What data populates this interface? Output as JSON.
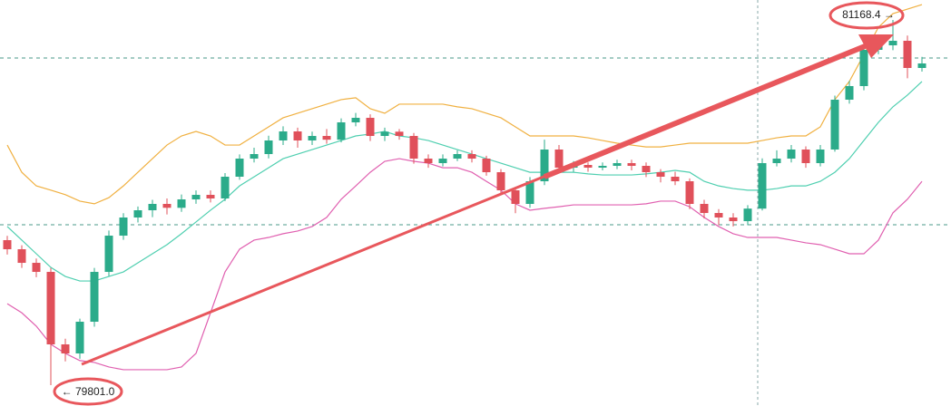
{
  "chart_data": {
    "type": "candlestick",
    "up_color": "#2bab8a",
    "down_color": "#e0505a",
    "ylim": [
      79723,
      81243
    ],
    "open": [
      80343.9,
      80309.9,
      80259.0,
      80225.1,
      79953.7,
      79919.7,
      80038.5,
      80225.1,
      80360.8,
      80428.7,
      80455.8,
      80479.6,
      80465.0,
      80496.5,
      80513.5,
      80500.0,
      80581.4,
      80649.2,
      80666.2,
      80717.1,
      80751.0,
      80717.1,
      80734.0,
      80720.0,
      80784.9,
      80801.9,
      80734.0,
      80750.0,
      80734.0,
      80649.2,
      80632.3,
      80649.2,
      80666.2,
      80649.2,
      80598.3,
      80530.5,
      80479.6,
      80564.4,
      80683.2,
      80615.3,
      80625.5,
      80615.3,
      80622.1,
      80632.3,
      80622.1,
      80598.3,
      80581.4,
      80564.4,
      80479.6,
      80445.6,
      80428.7,
      80415.0,
      80462.0,
      80632.3,
      80649.2,
      80683.2,
      80632.3,
      80683.2,
      80869.8,
      80920.7,
      81056.4,
      81073.3,
      81090.3,
      80988.5
    ],
    "high": [
      80360,
      80325,
      80275,
      80240,
      79975,
      80050,
      80240,
      80380,
      80445,
      80470,
      80495,
      80500,
      80515,
      80530,
      80530,
      80595,
      80665,
      80690,
      80735,
      80770,
      80765,
      80750,
      80760,
      80800,
      80820,
      80815,
      80765,
      80760,
      80745,
      80665,
      80665,
      80680,
      80680,
      80660,
      80610,
      80540,
      80580,
      80720,
      80700,
      80640,
      80635,
      80635,
      80645,
      80645,
      80635,
      80610,
      80600,
      80575,
      80495,
      80460,
      80445,
      80475,
      80650,
      80680,
      80700,
      80695,
      80700,
      80885,
      80940,
      81075,
      81110,
      81168.4,
      81110,
      81030
    ],
    "low": [
      80290,
      80240,
      80205,
      79801.0,
      79890,
      79900,
      80020,
      80210,
      80345,
      80410,
      80430,
      80440,
      80450,
      80480,
      80485,
      80490,
      80570,
      80635,
      80650,
      80700,
      80690,
      80700,
      80705,
      80710,
      80770,
      80715,
      80715,
      80720,
      80630,
      80615,
      80620,
      80640,
      80635,
      80585,
      80515,
      80445,
      80465,
      80550,
      80600,
      80600,
      80600,
      80605,
      80610,
      80605,
      80580,
      80560,
      80550,
      80460,
      80425,
      80400,
      80395,
      80400,
      80455,
      80620,
      80635,
      80615,
      80620,
      80675,
      80855,
      80905,
      81040,
      81055,
      80950,
      80975
    ],
    "close": [
      80309.9,
      80259.0,
      80225.1,
      79953.7,
      79919.7,
      80038.5,
      80225.1,
      80360.8,
      80428.7,
      80455.8,
      80479.6,
      80465.0,
      80496.5,
      80513.5,
      80500.0,
      80581.4,
      80649.2,
      80666.2,
      80717.1,
      80751.0,
      80717.1,
      80734.0,
      80720.0,
      80784.9,
      80801.9,
      80734.0,
      80750.0,
      80734.0,
      80649.2,
      80632.3,
      80649.2,
      80666.2,
      80649.2,
      80598.3,
      80530.5,
      80479.6,
      80564.4,
      80683.2,
      80615.3,
      80625.5,
      80615.3,
      80622.1,
      80632.3,
      80622.1,
      80598.3,
      80581.4,
      80564.4,
      80479.6,
      80445.6,
      80428.7,
      80415.0,
      80462.0,
      80632.3,
      80649.2,
      80683.2,
      80632.3,
      80683.2,
      80869.8,
      80920.7,
      81056.4,
      81073.3,
      81090.3,
      80988.5,
      81005.5
    ],
    "series": [
      {
        "color": "#f0b040",
        "values": [
          80700,
          80598,
          80547,
          80531,
          80514,
          80490,
          80480,
          80503,
          80547,
          80598,
          80649,
          80700,
          80734,
          80751,
          80734,
          80700,
          80700,
          80734,
          80768,
          80802,
          80819,
          80836,
          80853,
          80870,
          80877,
          80836,
          80819,
          80853,
          80853,
          80853,
          80853,
          80843,
          80836,
          80819,
          80802,
          80768,
          80734,
          80734,
          80734,
          80734,
          80727,
          80717,
          80707,
          80700,
          80693,
          80693,
          80700,
          80707,
          80707,
          80707,
          80707,
          80707,
          80717,
          80727,
          80734,
          80734,
          80768,
          80870,
          80938,
          81039,
          81141,
          81192,
          81209,
          81226
        ]
      },
      {
        "color": "#4fcfb0",
        "values": [
          80395,
          80344,
          80293,
          80242,
          80208,
          80191,
          80191,
          80208,
          80225,
          80259,
          80293,
          80327,
          80368,
          80412,
          80456,
          80497,
          80547,
          80581,
          80615,
          80649,
          80666,
          80683,
          80700,
          80717,
          80734,
          80741,
          80751,
          80734,
          80727,
          80717,
          80700,
          80683,
          80666,
          80649,
          80632,
          80615,
          80598,
          80598,
          80598,
          80598,
          80592,
          80588,
          80588,
          80588,
          80592,
          80598,
          80605,
          80598,
          80564,
          80547,
          80537,
          80531,
          80531,
          80537,
          80547,
          80547,
          80564,
          80598,
          80649,
          80717,
          80785,
          80843,
          80887,
          80938
        ]
      },
      {
        "color": "#e060b0",
        "values": [
          80106,
          80072,
          80022,
          79954,
          79920,
          79893,
          79886,
          79869,
          79859,
          79859,
          79859,
          79859,
          79869,
          79920,
          80072,
          80225,
          80310,
          80344,
          80354,
          80368,
          80378,
          80395,
          80429,
          80497,
          80547,
          80598,
          80639,
          80649,
          80639,
          80632,
          80615,
          80615,
          80598,
          80564,
          80531,
          80480,
          80456,
          80463,
          80469,
          80476,
          80476,
          80476,
          80476,
          80476,
          80480,
          80490,
          80490,
          80469,
          80429,
          80395,
          80368,
          80354,
          80354,
          80354,
          80344,
          80334,
          80327,
          80310,
          80293,
          80293,
          80344,
          80446,
          80497,
          80564
        ]
      }
    ],
    "reference_lines": [
      81026,
      80401.5
    ],
    "annotations": [
      {
        "value": 79801.0,
        "label": "← 79801.0"
      },
      {
        "value": 81168.4,
        "label": "81168.4 →"
      }
    ]
  }
}
